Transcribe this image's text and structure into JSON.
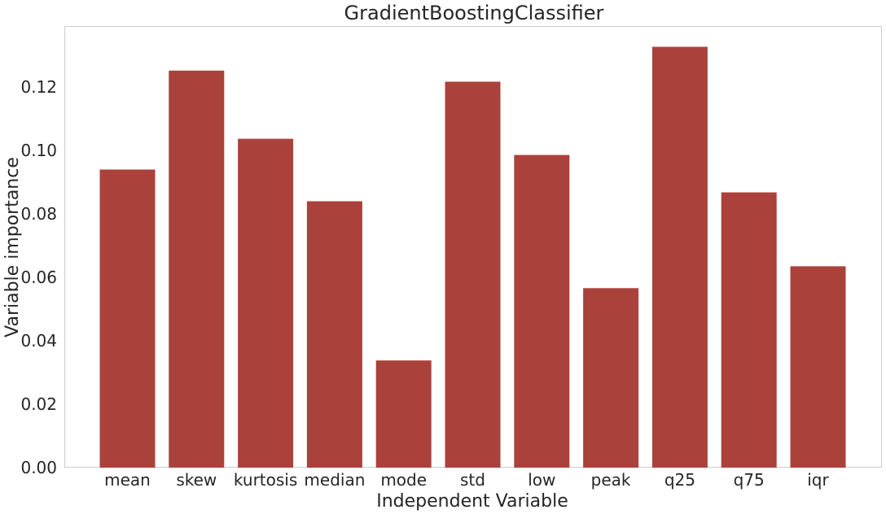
{
  "chart_data": {
    "type": "bar",
    "title": "GradientBoostingClassifier",
    "xlabel": "Independent Variable",
    "ylabel": "Variable importance",
    "categories": [
      "mean",
      "skew",
      "kurtosis",
      "median",
      "mode",
      "std",
      "low",
      "peak",
      "q25",
      "q75",
      "iqr"
    ],
    "values": [
      0.094,
      0.1252,
      0.1037,
      0.084,
      0.0338,
      0.1217,
      0.0986,
      0.0566,
      0.1327,
      0.0868,
      0.0635
    ],
    "ylim": [
      0,
      0.139
    ],
    "yticks": [
      "0.00",
      "0.02",
      "0.04",
      "0.06",
      "0.08",
      "0.10",
      "0.12"
    ],
    "bar_color": "#ab413b",
    "grid": false
  }
}
